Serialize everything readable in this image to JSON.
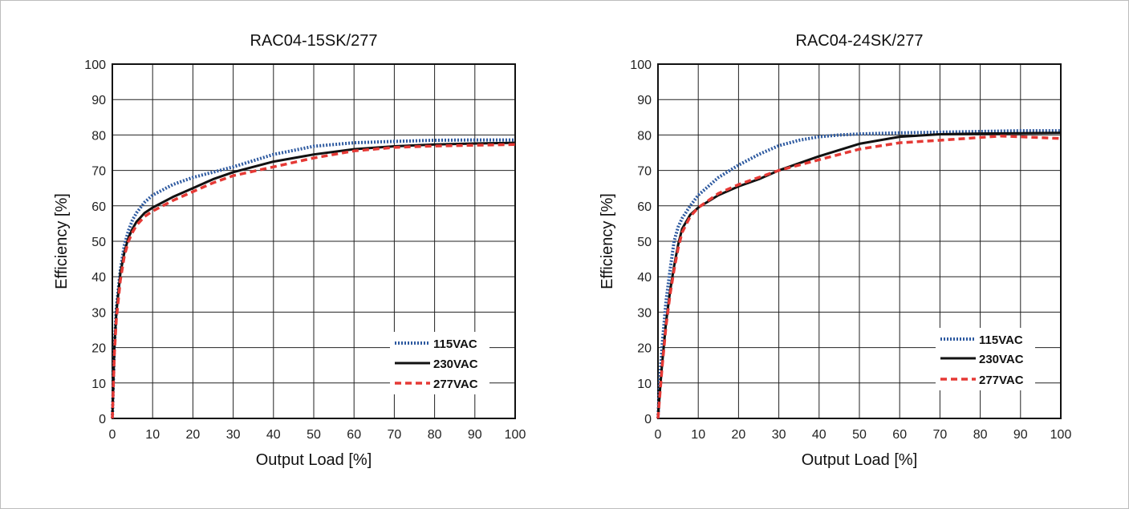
{
  "chart_data": [
    {
      "type": "line",
      "title": "RAC04-15SK/277",
      "xlabel": "Output Load [%]",
      "ylabel": "Efficiency [%]",
      "xlim": [
        0,
        100
      ],
      "ylim": [
        0,
        100
      ],
      "xticks": [
        0,
        10,
        20,
        30,
        40,
        50,
        60,
        70,
        80,
        90,
        100
      ],
      "yticks": [
        0,
        10,
        20,
        30,
        40,
        50,
        60,
        70,
        80,
        90,
        100
      ],
      "grid": true,
      "legend_position": "bottom-right",
      "series": [
        {
          "name": "115VAC",
          "color": "#2e5aa0",
          "style": "dotted",
          "x": [
            0.5,
            1,
            2,
            3,
            4,
            5,
            6,
            8,
            10,
            15,
            20,
            25,
            30,
            40,
            50,
            60,
            70,
            80,
            90,
            100
          ],
          "y": [
            20,
            31,
            42,
            49,
            53,
            56,
            58,
            61,
            63,
            66,
            68,
            69.5,
            71,
            74.5,
            76.8,
            77.8,
            78.2,
            78.5,
            78.6,
            78.6
          ]
        },
        {
          "name": "230VAC",
          "color": "#111111",
          "style": "solid",
          "x": [
            0.5,
            1,
            2,
            3,
            4,
            5,
            6,
            8,
            10,
            15,
            20,
            25,
            30,
            40,
            50,
            60,
            70,
            80,
            90,
            100
          ],
          "y": [
            20,
            30,
            41,
            47,
            51,
            53.5,
            55.5,
            58,
            59.5,
            62.5,
            65,
            67.5,
            69.5,
            72.5,
            74.5,
            76,
            76.8,
            77.3,
            77.6,
            77.8
          ]
        },
        {
          "name": "277VAC",
          "color": "#e53935",
          "style": "dashed",
          "x": [
            0.5,
            1,
            2,
            3,
            4,
            5,
            6,
            8,
            10,
            15,
            20,
            25,
            30,
            40,
            50,
            60,
            70,
            80,
            90,
            100
          ],
          "y": [
            18,
            28,
            39,
            46,
            50,
            52.5,
            54.5,
            57,
            58.5,
            61.5,
            64,
            66.5,
            68.5,
            71,
            73.5,
            75.5,
            76.5,
            76.9,
            77.1,
            77.3
          ]
        }
      ]
    },
    {
      "type": "line",
      "title": "RAC04-24SK/277",
      "xlabel": "Output Load [%]",
      "ylabel": "Efficiency [%]",
      "xlim": [
        0,
        100
      ],
      "ylim": [
        0,
        100
      ],
      "xticks": [
        0,
        10,
        20,
        30,
        40,
        50,
        60,
        70,
        80,
        90,
        100
      ],
      "yticks": [
        0,
        10,
        20,
        30,
        40,
        50,
        60,
        70,
        80,
        90,
        100
      ],
      "grid": true,
      "legend_position": "bottom-right",
      "series": [
        {
          "name": "115VAC",
          "color": "#2e5aa0",
          "style": "dotted",
          "x": [
            0.5,
            1,
            2,
            3,
            4,
            5,
            6,
            8,
            10,
            15,
            20,
            25,
            30,
            35,
            40,
            45,
            50,
            60,
            70,
            80,
            90,
            100
          ],
          "y": [
            12,
            20,
            33,
            42,
            50,
            54,
            56.5,
            60,
            63,
            68,
            71.5,
            74.5,
            77,
            78.5,
            79.5,
            80,
            80.3,
            80.6,
            80.8,
            81,
            81.2,
            81.2
          ]
        },
        {
          "name": "230VAC",
          "color": "#111111",
          "style": "solid",
          "x": [
            0.5,
            1,
            2,
            3,
            4,
            5,
            6,
            8,
            10,
            15,
            20,
            25,
            30,
            40,
            50,
            60,
            70,
            80,
            90,
            100
          ],
          "y": [
            8,
            15,
            27,
            36,
            43,
            49,
            53.5,
            57.5,
            59.5,
            63,
            65.5,
            67.5,
            70,
            74,
            77.5,
            79.5,
            80.2,
            80.4,
            80.5,
            80.6
          ]
        },
        {
          "name": "277VAC",
          "color": "#e53935",
          "style": "dashed",
          "x": [
            0.5,
            1,
            2,
            3,
            4,
            5,
            6,
            8,
            10,
            15,
            20,
            25,
            30,
            40,
            50,
            60,
            70,
            80,
            85,
            90,
            100
          ],
          "y": [
            7,
            14,
            26,
            35,
            42,
            48,
            52.5,
            57,
            59.5,
            63.5,
            66,
            68,
            70,
            73,
            76,
            77.8,
            78.5,
            79.3,
            79.7,
            79.5,
            79
          ]
        }
      ]
    }
  ]
}
